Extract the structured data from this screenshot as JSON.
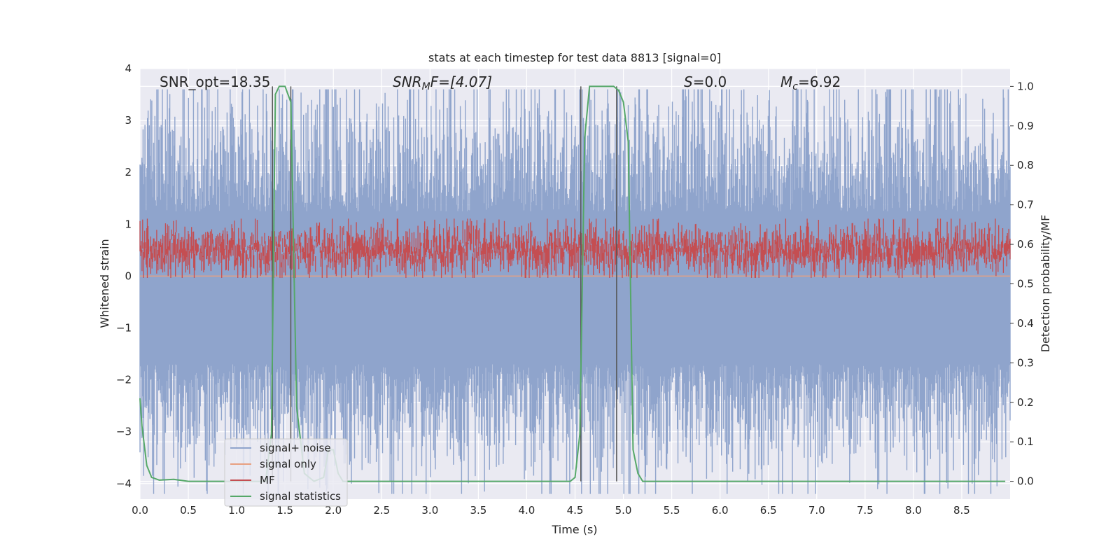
{
  "chart_data": {
    "type": "line",
    "title": "stats at each timestep for test data 8813 [signal=0]",
    "xlabel": "Time (s)",
    "ylabel": "Whitened strain",
    "y2label": "Detection probability/MF",
    "xlim": [
      0.0,
      9.0
    ],
    "ylim": [
      -4.3,
      4.0
    ],
    "y2lim": [
      -0.045,
      1.045
    ],
    "x_ticks": [
      "0.0",
      "0.5",
      "1.0",
      "1.5",
      "2.0",
      "2.5",
      "3.0",
      "3.5",
      "4.0",
      "4.5",
      "5.0",
      "5.5",
      "6.0",
      "6.5",
      "7.0",
      "7.5",
      "8.0",
      "8.5"
    ],
    "y_ticks": [
      "4",
      "3",
      "2",
      "1",
      "0",
      "−1",
      "−2",
      "−3",
      "−4"
    ],
    "y2_ticks": [
      "1.0",
      "0.9",
      "0.8",
      "0.7",
      "0.6",
      "0.5",
      "0.4",
      "0.3",
      "0.2",
      "0.1",
      "0.0"
    ],
    "grid": true,
    "legend_position": "lower-left",
    "annotations": {
      "snr_opt": "SNR_opt=18.35",
      "snr_mf_base": "SNR",
      "snr_mf_sub": "M",
      "snr_mf_rest": "F=[4.07]",
      "s_italic": "S",
      "s_rest": "=0.0",
      "mc_base": "M",
      "mc_sub": "c",
      "mc_rest": "=6.92"
    },
    "series": [
      {
        "name": "signal+ noise",
        "color": "#8fa4cc",
        "axis": "left",
        "description_values": "noise band spanning roughly -4 to 3.3"
      },
      {
        "name": "signal only",
        "color": "#e8a080",
        "axis": "left",
        "values_y": 0.0
      },
      {
        "name": "MF",
        "color": "#c44e52",
        "axis": "right",
        "range": [
          0.52,
          0.65
        ]
      },
      {
        "name": "signal statistics",
        "color": "#55a868",
        "axis": "right",
        "x": [
          0.0,
          0.02,
          0.07,
          0.12,
          0.2,
          0.35,
          0.5,
          1.3,
          1.36,
          1.4,
          1.44,
          1.5,
          1.56,
          1.62,
          1.7,
          1.8,
          1.9,
          1.95,
          2.0,
          2.05,
          2.1,
          2.2,
          4.4,
          4.45,
          4.5,
          4.55,
          4.6,
          4.65,
          4.8,
          4.9,
          4.95,
          5.0,
          5.05,
          5.1,
          5.15,
          5.2,
          8.95
        ],
        "y": [
          0.21,
          0.14,
          0.04,
          0.01,
          0.003,
          0.005,
          0.0,
          0.0,
          0.12,
          0.98,
          1.0,
          1.0,
          0.96,
          0.19,
          0.02,
          0.0,
          0.01,
          0.08,
          0.08,
          0.02,
          0.0,
          0.0,
          0.0,
          0.0,
          0.01,
          0.12,
          0.87,
          1.0,
          1.0,
          1.0,
          0.99,
          0.96,
          0.86,
          0.08,
          0.02,
          0.0,
          0.0
        ]
      }
    ],
    "vertical_lines_x": [
      1.37,
      1.56,
      4.56,
      4.93
    ]
  }
}
